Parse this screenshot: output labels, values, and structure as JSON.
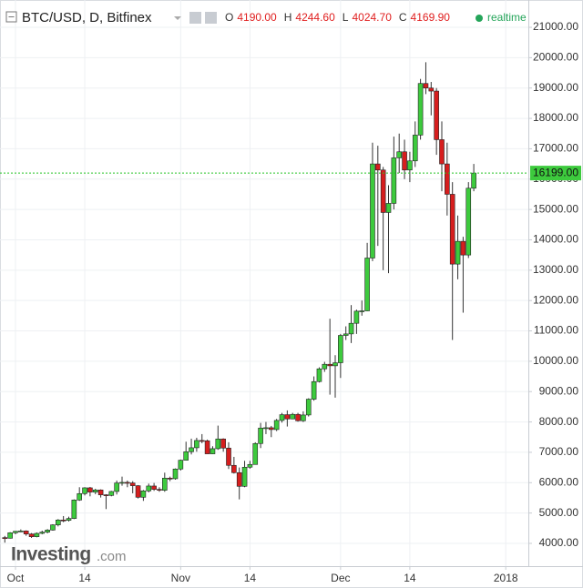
{
  "chart_data": {
    "type": "candlestick",
    "title": "BTC/USD, D, Bitfinex",
    "legend": [
      {
        "key": "O",
        "value": 4190,
        "label": "4190.00"
      },
      {
        "key": "H",
        "value": 4244.6,
        "label": "4244.60"
      },
      {
        "key": "L",
        "value": 4024.7,
        "label": "4024.70"
      },
      {
        "key": "C",
        "value": 4169.9,
        "label": "4169.90"
      }
    ],
    "status": "realtime",
    "watermark": {
      "brand": "Investing",
      "suffix": ".com"
    },
    "last_price": {
      "value": 16199,
      "label": "16199.00"
    },
    "up_color": "#3dca3d",
    "down_color": "#d61e1e",
    "line_color": "#25c425",
    "grid": true,
    "ylim": [
      3250,
      21900
    ],
    "yticks": [
      {
        "value": 4000,
        "label": "4000.00"
      },
      {
        "value": 5000,
        "label": "5000.00"
      },
      {
        "value": 6000,
        "label": "6000.00"
      },
      {
        "value": 7000,
        "label": "7000.00"
      },
      {
        "value": 8000,
        "label": "8000.00"
      },
      {
        "value": 9000,
        "label": "9000.00"
      },
      {
        "value": 10000,
        "label": "10000.00"
      },
      {
        "value": 11000,
        "label": "11000.00"
      },
      {
        "value": 12000,
        "label": "12000.00"
      },
      {
        "value": 13000,
        "label": "13000.00"
      },
      {
        "value": 14000,
        "label": "14000.00"
      },
      {
        "value": 15000,
        "label": "15000.00"
      },
      {
        "value": 16000,
        "label": "16000.00"
      },
      {
        "value": 17000,
        "label": "17000.00"
      },
      {
        "value": 18000,
        "label": "18000.00"
      },
      {
        "value": 19000,
        "label": "19000.00"
      },
      {
        "value": 20000,
        "label": "20000.00"
      },
      {
        "value": 21000,
        "label": "21000.00"
      }
    ],
    "xticks": [
      {
        "value": "10-01",
        "label": "Oct"
      },
      {
        "value": "10-14",
        "label": "14"
      },
      {
        "value": "11-01",
        "label": "Nov"
      },
      {
        "value": "11-14",
        "label": "14"
      },
      {
        "value": "12-01",
        "label": "Dec"
      },
      {
        "value": "12-14",
        "label": "14"
      },
      {
        "value": "01-01",
        "label": "2018"
      }
    ],
    "x": [
      "09-29",
      "09-30",
      "10-01",
      "10-02",
      "10-03",
      "10-04",
      "10-05",
      "10-06",
      "10-07",
      "10-08",
      "10-09",
      "10-10",
      "10-11",
      "10-12",
      "10-13",
      "10-14",
      "10-15",
      "10-16",
      "10-17",
      "10-18",
      "10-19",
      "10-20",
      "10-21",
      "10-22",
      "10-23",
      "10-24",
      "10-25",
      "10-26",
      "10-27",
      "10-28",
      "10-29",
      "10-30",
      "10-31",
      "11-01",
      "11-02",
      "11-03",
      "11-04",
      "11-05",
      "11-06",
      "11-07",
      "11-08",
      "11-09",
      "11-10",
      "11-11",
      "11-12",
      "11-13",
      "11-14",
      "11-15",
      "11-16",
      "11-17",
      "11-18",
      "11-19",
      "11-20",
      "11-21",
      "11-22",
      "11-23",
      "11-24",
      "11-25",
      "11-26",
      "11-27",
      "11-28",
      "11-29",
      "11-30",
      "12-01",
      "12-02",
      "12-03",
      "12-04",
      "12-05",
      "12-06",
      "12-07",
      "12-08",
      "12-09",
      "12-10",
      "12-11",
      "12-12",
      "12-13",
      "12-14",
      "12-15",
      "12-16",
      "12-17",
      "12-18",
      "12-19",
      "12-20",
      "12-21",
      "12-22",
      "12-23",
      "12-24",
      "12-25",
      "12-26"
    ],
    "open": [
      4190,
      4170,
      4350,
      4400,
      4410,
      4310,
      4220,
      4330,
      4370,
      4440,
      4610,
      4770,
      4760,
      4820,
      5430,
      5640,
      5830,
      5690,
      5760,
      5600,
      5580,
      5710,
      5990,
      6010,
      5990,
      5900,
      5520,
      5730,
      5890,
      5780,
      5750,
      6150,
      6130,
      6450,
      6740,
      7020,
      7150,
      7390,
      7380,
      6950,
      7120,
      7440,
      7140,
      6570,
      6330,
      5880,
      6510,
      6600,
      7290,
      7800,
      7810,
      7750,
      8050,
      8240,
      8100,
      8250,
      8040,
      8230,
      8750,
      9330,
      9750,
      9900,
      9850,
      9950,
      10850,
      10900,
      11250,
      11650,
      11660,
      13400,
      16500,
      16300,
      14900,
      15200,
      16700,
      16900,
      16300,
      16600,
      17450,
      19150,
      19000,
      18900,
      17300,
      16500,
      15500,
      13200,
      13950,
      13500,
      15700
    ],
    "high": [
      4244.6,
      4370,
      4410,
      4460,
      4430,
      4340,
      4360,
      4420,
      4470,
      4630,
      4800,
      4900,
      4880,
      5450,
      5850,
      5850,
      5860,
      5800,
      5780,
      5620,
      5730,
      6070,
      6200,
      6070,
      6050,
      5920,
      5760,
      5970,
      5990,
      5850,
      6330,
      6200,
      6470,
      6760,
      7350,
      7450,
      7480,
      7600,
      7420,
      7200,
      7880,
      7460,
      7330,
      6850,
      6500,
      6720,
      6720,
      7330,
      7970,
      8000,
      7870,
      8100,
      8300,
      8380,
      8300,
      8300,
      8350,
      8780,
      9500,
      9800,
      9980,
      11400,
      10200,
      10900,
      11150,
      11850,
      11700,
      12000,
      13900,
      17200,
      17100,
      16400,
      15800,
      17400,
      17500,
      17300,
      16900,
      17900,
      19300,
      19850,
      19200,
      19000,
      17900,
      17200,
      15900,
      14800,
      14100,
      15900,
      16500
    ],
    "low": [
      4024.7,
      4160,
      4300,
      4370,
      4250,
      4180,
      4200,
      4300,
      4330,
      4420,
      4560,
      4700,
      4720,
      4800,
      5400,
      5580,
      5550,
      5620,
      5510,
      5130,
      5550,
      5610,
      5900,
      5850,
      5650,
      5480,
      5400,
      5680,
      5730,
      5700,
      5700,
      6050,
      6100,
      6400,
      6730,
      6930,
      7020,
      7300,
      6950,
      6940,
      7080,
      7020,
      6450,
      6300,
      5450,
      5850,
      6460,
      6600,
      7140,
      7600,
      7500,
      7700,
      7980,
      7850,
      8090,
      8010,
      8000,
      8180,
      8700,
      9300,
      9650,
      8900,
      8800,
      9450,
      10700,
      10600,
      10900,
      11500,
      11650,
      13300,
      13800,
      13000,
      12900,
      15000,
      16200,
      16000,
      15900,
      16400,
      17300,
      18800,
      18100,
      16800,
      15600,
      14800,
      10700,
      12700,
      11600,
      13400,
      15600
    ],
    "close": [
      4169.9,
      4350,
      4400,
      4410,
      4310,
      4220,
      4330,
      4370,
      4440,
      4610,
      4770,
      4760,
      4820,
      5430,
      5640,
      5830,
      5690,
      5760,
      5600,
      5580,
      5710,
      5990,
      6010,
      5990,
      5900,
      5520,
      5730,
      5890,
      5780,
      5750,
      6150,
      6130,
      6450,
      6740,
      7020,
      7150,
      7390,
      7380,
      6950,
      7120,
      7440,
      7140,
      6570,
      6330,
      5880,
      6510,
      6600,
      7290,
      7800,
      7810,
      7750,
      8050,
      8240,
      8100,
      8250,
      8040,
      8230,
      8750,
      9330,
      9750,
      9900,
      9850,
      9950,
      10850,
      10900,
      11250,
      11650,
      11660,
      13400,
      16500,
      16300,
      14900,
      15200,
      16700,
      16900,
      16300,
      16600,
      17450,
      19150,
      19000,
      18900,
      17300,
      16500,
      15500,
      13200,
      13950,
      13500,
      15700,
      16199
    ]
  }
}
